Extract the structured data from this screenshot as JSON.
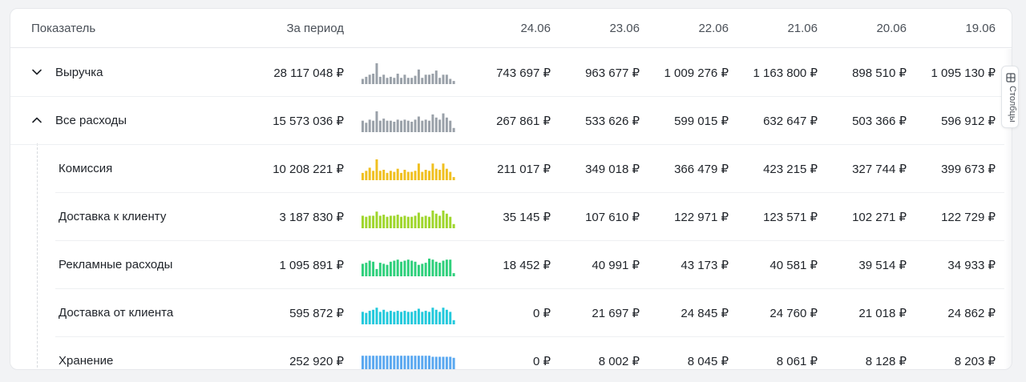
{
  "header": {
    "indicator": "Показатель",
    "period": "За период",
    "dates": [
      "24.06",
      "23.06",
      "22.06",
      "21.06",
      "20.06",
      "19.06"
    ]
  },
  "rows": [
    {
      "label": "Выручка",
      "expand_icon": "chevron-down-icon",
      "total": "28 117 048 ₽",
      "values": [
        "743 697 ₽",
        "963 677 ₽",
        "1 009 276 ₽",
        "1 163 800 ₽",
        "898 510 ₽",
        "1 095 130 ₽"
      ],
      "color": "#9aa1a9",
      "spark": [
        0.25,
        0.35,
        0.45,
        0.5,
        1.0,
        0.35,
        0.45,
        0.3,
        0.35,
        0.3,
        0.5,
        0.3,
        0.45,
        0.3,
        0.3,
        0.4,
        0.7,
        0.3,
        0.45,
        0.45,
        0.5,
        0.65,
        0.3,
        0.45,
        0.45,
        0.25,
        0.15
      ]
    },
    {
      "label": "Все расходы",
      "expand_icon": "chevron-up-icon",
      "total": "15 573 036 ₽",
      "values": [
        "267 861 ₽",
        "533 626 ₽",
        "599 015 ₽",
        "632 647 ₽",
        "503 366 ₽",
        "596 912 ₽"
      ],
      "color": "#9aa1a9",
      "spark": [
        0.55,
        0.45,
        0.6,
        0.55,
        1.0,
        0.55,
        0.65,
        0.55,
        0.55,
        0.5,
        0.6,
        0.55,
        0.6,
        0.55,
        0.5,
        0.6,
        0.75,
        0.55,
        0.6,
        0.55,
        0.85,
        0.7,
        0.6,
        0.9,
        0.7,
        0.55,
        0.2
      ]
    },
    {
      "label": "Комиссия",
      "total": "10 208 221 ₽",
      "values": [
        "211 017 ₽",
        "349 018 ₽",
        "366 479 ₽",
        "423 215 ₽",
        "327 744 ₽",
        "399 673 ₽"
      ],
      "color": "#f0c020",
      "spark": [
        0.35,
        0.45,
        0.6,
        0.45,
        1.0,
        0.45,
        0.5,
        0.35,
        0.45,
        0.4,
        0.55,
        0.35,
        0.5,
        0.4,
        0.4,
        0.45,
        0.8,
        0.4,
        0.5,
        0.45,
        0.8,
        0.55,
        0.5,
        0.8,
        0.55,
        0.4,
        0.15
      ]
    },
    {
      "label": "Доставка к клиенту",
      "total": "3 187 830 ₽",
      "values": [
        "35 145 ₽",
        "107 610 ₽",
        "122 971 ₽",
        "123 571 ₽",
        "102 271 ₽",
        "122 729 ₽"
      ],
      "color": "#9fd62c",
      "spark": [
        0.6,
        0.55,
        0.6,
        0.6,
        0.8,
        0.6,
        0.65,
        0.55,
        0.6,
        0.6,
        0.65,
        0.55,
        0.6,
        0.55,
        0.55,
        0.6,
        0.75,
        0.55,
        0.6,
        0.55,
        0.85,
        0.7,
        0.6,
        0.85,
        0.7,
        0.55,
        0.2
      ]
    },
    {
      "label": "Рекламные расходы",
      "total": "1 095 891 ₽",
      "values": [
        "18 452 ₽",
        "40 991 ₽",
        "43 173 ₽",
        "40 581 ₽",
        "39 514 ₽",
        "34 933 ₽"
      ],
      "color": "#2fd07c",
      "spark": [
        0.6,
        0.65,
        0.75,
        0.7,
        0.35,
        0.65,
        0.6,
        0.55,
        0.7,
        0.75,
        0.8,
        0.7,
        0.75,
        0.8,
        0.75,
        0.7,
        0.55,
        0.6,
        0.65,
        0.85,
        0.8,
        0.7,
        0.65,
        0.75,
        0.8,
        0.8,
        0.15
      ]
    },
    {
      "label": "Доставка от клиента",
      "total": "595 872 ₽",
      "values": [
        "0 ₽",
        "21 697 ₽",
        "24 845 ₽",
        "24 760 ₽",
        "21 018 ₽",
        "24 862 ₽"
      ],
      "color": "#22c9dc",
      "spark": [
        0.6,
        0.55,
        0.65,
        0.7,
        0.8,
        0.6,
        0.7,
        0.6,
        0.65,
        0.6,
        0.65,
        0.6,
        0.65,
        0.6,
        0.6,
        0.65,
        0.75,
        0.6,
        0.65,
        0.6,
        0.8,
        0.7,
        0.6,
        0.8,
        0.7,
        0.6,
        0.2
      ]
    },
    {
      "label": "Хранение",
      "total": "252 920 ₽",
      "values": [
        "0 ₽",
        "8 002 ₽",
        "8 045 ₽",
        "8 061 ₽",
        "8 128 ₽",
        "8 203 ₽"
      ],
      "color": "#5aa8f0",
      "spark": [
        0.8,
        0.8,
        0.8,
        0.8,
        0.8,
        0.8,
        0.8,
        0.8,
        0.8,
        0.8,
        0.8,
        0.8,
        0.8,
        0.8,
        0.8,
        0.8,
        0.8,
        0.8,
        0.8,
        0.8,
        0.75,
        0.75,
        0.75,
        0.75,
        0.75,
        0.75,
        0.7
      ]
    }
  ],
  "columns_button": {
    "label": "Столбцы",
    "icon": "columns-icon"
  }
}
